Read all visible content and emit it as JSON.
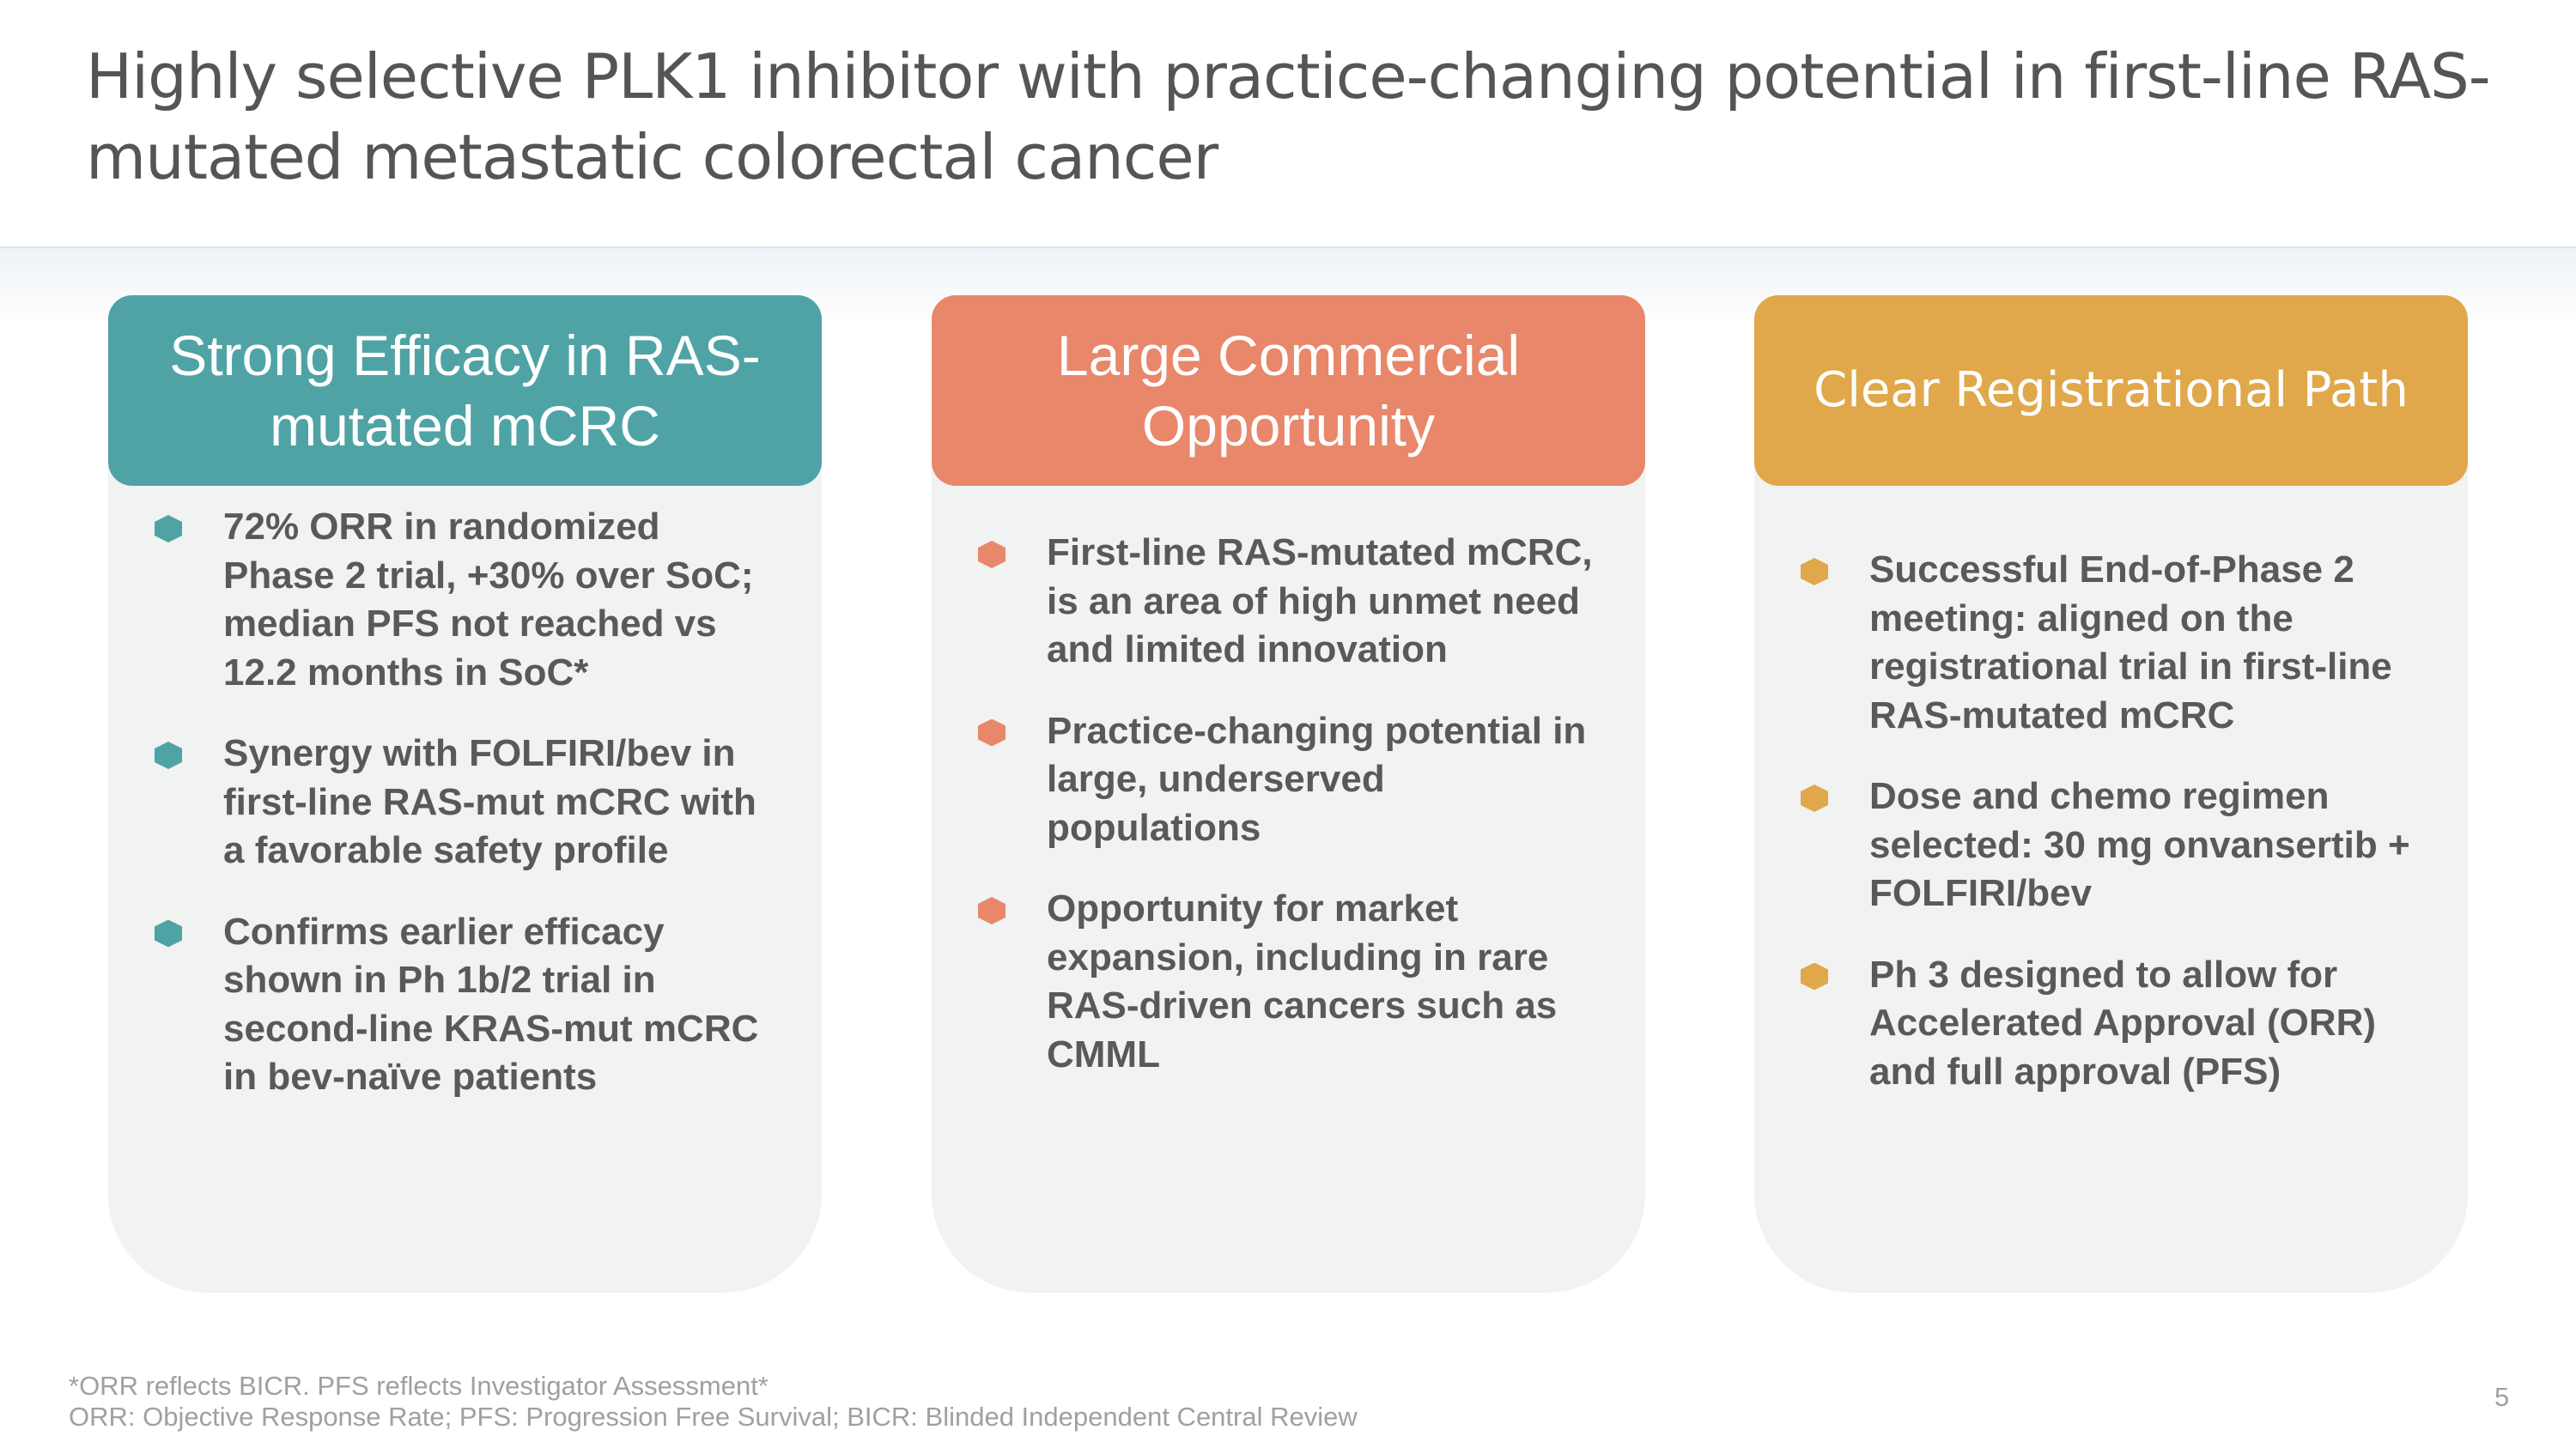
{
  "title": "Highly selective PLK1 inhibitor with practice-changing potential in first-line RAS-mutated metastatic colorectal cancer",
  "cards": [
    {
      "heading": "Strong Efficacy in RAS-mutated mCRC",
      "bullets": [
        "72% ORR in randomized Phase 2 trial, +30% over SoC; median PFS not reached vs 12.2 months in SoC*",
        "Synergy with FOLFIRI/bev in first-line RAS-mut mCRC with a favorable safety profile",
        "Confirms earlier efficacy shown in Ph 1b/2 trial in second-line KRAS-mut mCRC in bev-naïve patients"
      ]
    },
    {
      "heading": "Large Commercial Opportunity",
      "bullets": [
        "First-line RAS-mutated mCRC, is an area of high unmet need and limited innovation",
        "Practice-changing potential in large, underserved populations",
        "Opportunity for market expansion, including in rare RAS-driven cancers such as CMML"
      ]
    },
    {
      "heading": "Clear Registrational Path",
      "bullets": [
        "Successful End-of-Phase 2 meeting: aligned on the registrational trial in first-line RAS-mutated mCRC",
        "Dose and chemo regimen selected: 30 mg onvansertib + FOLFIRI/bev",
        "Ph 3 designed to allow for Accelerated Approval (ORR) and full approval (PFS)"
      ]
    }
  ],
  "footnotes": [
    "*ORR reflects BICR. PFS reflects Investigator Assessment*",
    "ORR: Objective Response Rate; PFS: Progression Free Survival; BICR: Blinded Independent Central Review"
  ],
  "page_number": "5"
}
